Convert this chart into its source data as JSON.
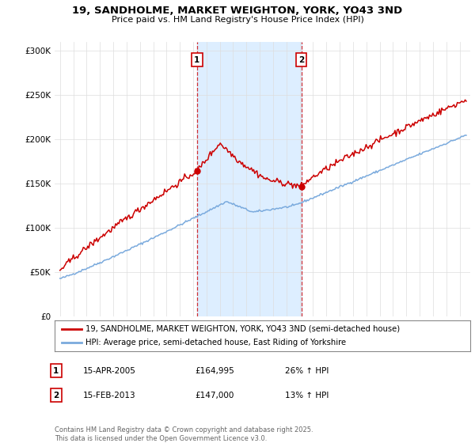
{
  "title_line1": "19, SANDHOLME, MARKET WEIGHTON, YORK, YO43 3ND",
  "title_line2": "Price paid vs. HM Land Registry's House Price Index (HPI)",
  "ylabel_ticks": [
    "£0",
    "£50K",
    "£100K",
    "£150K",
    "£200K",
    "£250K",
    "£300K"
  ],
  "ytick_vals": [
    0,
    50000,
    100000,
    150000,
    200000,
    250000,
    300000
  ],
  "ylim": [
    0,
    310000
  ],
  "xlim_start": 1994.6,
  "xlim_end": 2025.8,
  "transaction1": {
    "date_num": 2005.29,
    "price": 164995,
    "label": "1"
  },
  "transaction2": {
    "date_num": 2013.12,
    "price": 147000,
    "label": "2"
  },
  "legend_entry1": "19, SANDHOLME, MARKET WEIGHTON, YORK, YO43 3ND (semi-detached house)",
  "legend_entry2": "HPI: Average price, semi-detached house, East Riding of Yorkshire",
  "table_row1": [
    "1",
    "15-APR-2005",
    "£164,995",
    "26% ↑ HPI"
  ],
  "table_row2": [
    "2",
    "15-FEB-2013",
    "£147,000",
    "13% ↑ HPI"
  ],
  "footnote": "Contains HM Land Registry data © Crown copyright and database right 2025.\nThis data is licensed under the Open Government Licence v3.0.",
  "shaded_region_x1": 2005.29,
  "shaded_region_x2": 2013.12,
  "price_line_color": "#cc0000",
  "hpi_line_color": "#7aaadd",
  "shade_color": "#ddeeff",
  "grid_color": "#dddddd",
  "background_color": "#ffffff"
}
